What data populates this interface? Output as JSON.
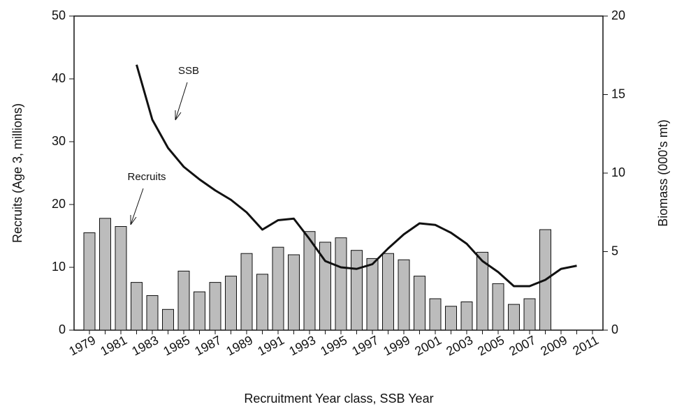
{
  "chart_data": {
    "type": "bar",
    "x_label": "Recruitment Year class, SSB Year",
    "y_label": "Recruits (Age 3, millions)",
    "y2_label": "Biomass (000's mt)",
    "annotations": [
      "SSB",
      "Recruits"
    ],
    "categories": [
      "1979",
      null,
      "1981",
      null,
      "1983",
      null,
      "1985",
      null,
      "1987",
      null,
      "1989",
      null,
      "1991",
      null,
      "1993",
      null,
      "1995",
      null,
      "1997",
      null,
      "1999",
      null,
      "2001",
      null,
      "2003",
      null,
      "2005",
      null,
      "2007",
      null,
      "2009",
      null,
      "2011"
    ],
    "series": [
      {
        "name": "Recruits",
        "type": "bar",
        "color": "#bcbcbc",
        "values": [
          15.5,
          17.8,
          16.5,
          7.6,
          5.5,
          3.3,
          9.4,
          6.1,
          7.6,
          8.6,
          12.2,
          8.9,
          13.2,
          12.0,
          15.7,
          14.0,
          14.7,
          12.7,
          11.4,
          12.2,
          11.2,
          8.6,
          5.0,
          3.8,
          4.5,
          12.4,
          7.4,
          4.1,
          5.0,
          16.0,
          null,
          null,
          null
        ]
      },
      {
        "name": "SSB",
        "type": "line",
        "color": "#111111",
        "axis": "y2",
        "values": [
          null,
          null,
          null,
          16.9,
          13.4,
          11.6,
          10.4,
          9.6,
          8.9,
          8.3,
          7.5,
          6.4,
          7.0,
          7.1,
          5.8,
          4.4,
          4.0,
          3.9,
          4.2,
          5.2,
          6.1,
          6.8,
          6.7,
          6.2,
          5.5,
          4.4,
          3.7,
          2.8,
          2.8,
          3.2,
          3.9,
          4.1,
          null
        ]
      }
    ],
    "ylim": [
      0,
      50
    ],
    "yticks": [
      0,
      10,
      20,
      30,
      40,
      50
    ],
    "y2lim": [
      0,
      20
    ],
    "y2ticks": [
      0,
      5,
      10,
      15,
      20
    ]
  }
}
